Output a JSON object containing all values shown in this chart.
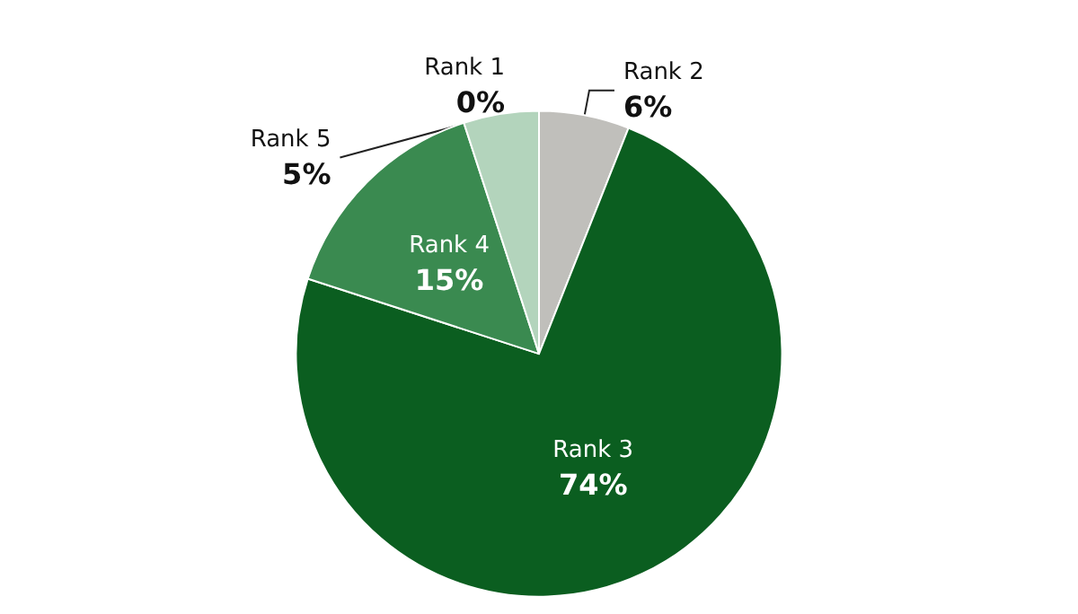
{
  "chart_data": {
    "type": "pie",
    "categories": [
      "Rank 1",
      "Rank 2",
      "Rank 3",
      "Rank 4",
      "Rank 5"
    ],
    "values": [
      0,
      6,
      74,
      15,
      5
    ],
    "value_labels": [
      "0%",
      "6%",
      "74%",
      "15%",
      "5%"
    ],
    "colors": [
      "#d0d0d0",
      "#c0bfbb",
      "#0b5e20",
      "#3a8a50",
      "#b3d4bc"
    ]
  }
}
